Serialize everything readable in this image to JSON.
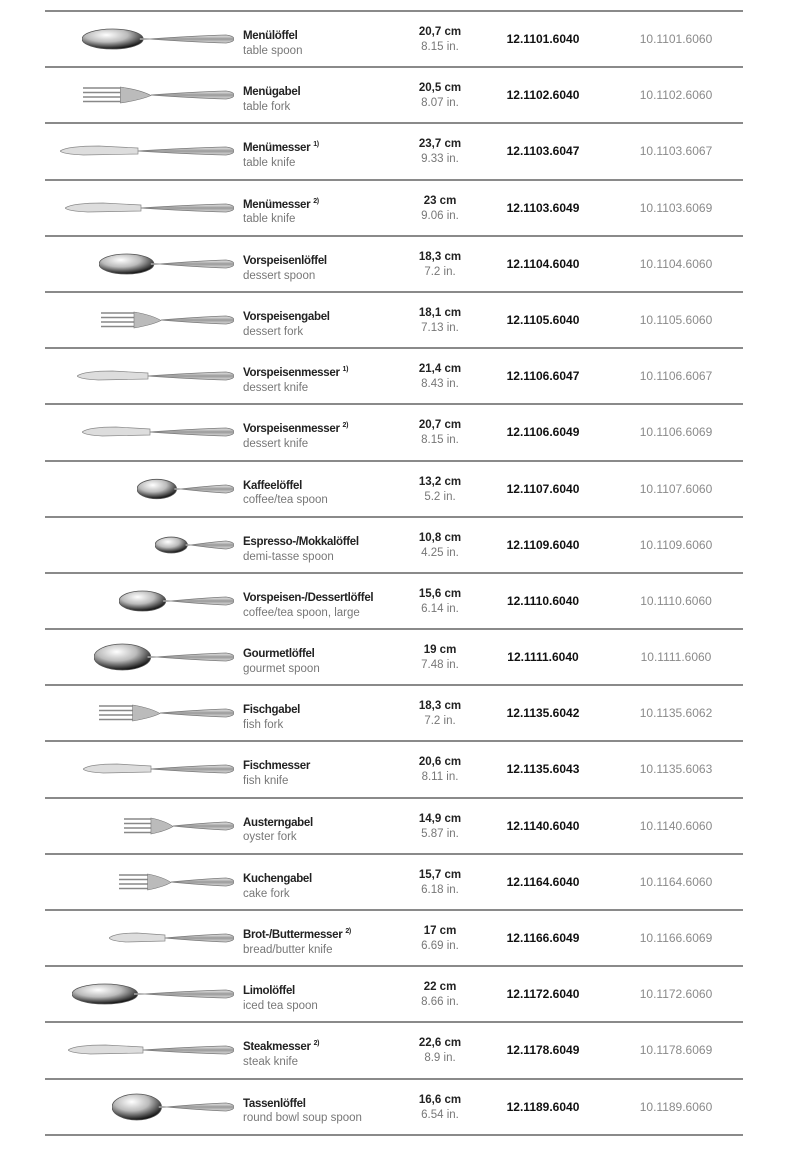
{
  "rows": [
    {
      "de": "Menülöffel",
      "note": "",
      "en": "table spoon",
      "cm": "20,7 cm",
      "in": "8.15 in.",
      "code1": "12.1101.6040",
      "code2": "10.1101.6060",
      "icon": "spoon",
      "len": 20.7
    },
    {
      "de": "Menügabel",
      "note": "",
      "en": "table fork",
      "cm": "20,5 cm",
      "in": "8.07 in.",
      "code1": "12.1102.6040",
      "code2": "10.1102.6060",
      "icon": "fork",
      "len": 20.5
    },
    {
      "de": "Menümesser",
      "note": "1)",
      "en": "table knife",
      "cm": "23,7 cm",
      "in": "9.33 in.",
      "code1": "12.1103.6047",
      "code2": "10.1103.6067",
      "icon": "knife",
      "len": 23.7
    },
    {
      "de": "Menümesser",
      "note": "2)",
      "en": "table knife",
      "cm": "23 cm",
      "in": "9.06 in.",
      "code1": "12.1103.6049",
      "code2": "10.1103.6069",
      "icon": "knife",
      "len": 23
    },
    {
      "de": "Vorspeisenlöffel",
      "note": "",
      "en": "dessert spoon",
      "cm": "18,3 cm",
      "in": "7.2 in.",
      "code1": "12.1104.6040",
      "code2": "10.1104.6060",
      "icon": "spoon",
      "len": 18.3
    },
    {
      "de": "Vorspeisengabel",
      "note": "",
      "en": "dessert fork",
      "cm": "18,1 cm",
      "in": "7.13 in.",
      "code1": "12.1105.6040",
      "code2": "10.1105.6060",
      "icon": "fork",
      "len": 18.1
    },
    {
      "de": "Vorspeisenmesser",
      "note": "1)",
      "en": "dessert knife",
      "cm": "21,4 cm",
      "in": "8.43 in.",
      "code1": "12.1106.6047",
      "code2": "10.1106.6067",
      "icon": "knife",
      "len": 21.4
    },
    {
      "de": "Vorspeisenmesser",
      "note": "2)",
      "en": "dessert knife",
      "cm": "20,7 cm",
      "in": "8.15 in.",
      "code1": "12.1106.6049",
      "code2": "10.1106.6069",
      "icon": "knife",
      "len": 20.7
    },
    {
      "de": "Kaffeelöffel",
      "note": "",
      "en": "coffee/tea spoon",
      "cm": "13,2 cm",
      "in": "5.2 in.",
      "code1": "12.1107.6040",
      "code2": "10.1107.6060",
      "icon": "spoon",
      "len": 13.2
    },
    {
      "de": "Espresso-/Mokkalöffel",
      "note": "",
      "en": "demi-tasse spoon",
      "cm": "10,8 cm",
      "in": "4.25 in.",
      "code1": "12.1109.6040",
      "code2": "10.1109.6060",
      "icon": "spoon",
      "len": 10.8
    },
    {
      "de": "Vorspeisen-/Dessertlöffel",
      "note": "",
      "en": "coffee/tea spoon, large",
      "cm": "15,6 cm",
      "in": "6.14 in.",
      "code1": "12.1110.6040",
      "code2": "10.1110.6060",
      "icon": "spoon",
      "len": 15.6
    },
    {
      "de": "Gourmetlöffel",
      "note": "",
      "en": "gourmet spoon",
      "cm": "19 cm",
      "in": "7.48 in.",
      "code1": "12.1111.6040",
      "code2": "10.1111.6060",
      "icon": "gourmet-spoon",
      "len": 19
    },
    {
      "de": "Fischgabel",
      "note": "",
      "en": "fish fork",
      "cm": "18,3 cm",
      "in": "7.2 in.",
      "code1": "12.1135.6042",
      "code2": "10.1135.6062",
      "icon": "fork",
      "len": 18.3
    },
    {
      "de": "Fischmesser",
      "note": "",
      "en": "fish knife",
      "cm": "20,6 cm",
      "in": "8.11 in.",
      "code1": "12.1135.6043",
      "code2": "10.1135.6063",
      "icon": "knife",
      "len": 20.6
    },
    {
      "de": "Austerngabel",
      "note": "",
      "en": "oyster fork",
      "cm": "14,9 cm",
      "in": "5.87 in.",
      "code1": "12.1140.6040",
      "code2": "10.1140.6060",
      "icon": "fork",
      "len": 14.9
    },
    {
      "de": "Kuchengabel",
      "note": "",
      "en": "cake fork",
      "cm": "15,7 cm",
      "in": "6.18 in.",
      "code1": "12.1164.6040",
      "code2": "10.1164.6060",
      "icon": "fork",
      "len": 15.7
    },
    {
      "de": "Brot-/Buttermesser",
      "note": "2)",
      "en": "bread/butter knife",
      "cm": "17 cm",
      "in": "6.69 in.",
      "code1": "12.1166.6049",
      "code2": "10.1166.6069",
      "icon": "knife",
      "len": 17
    },
    {
      "de": "Limolöffel",
      "note": "",
      "en": "iced tea spoon",
      "cm": "22 cm",
      "in": "8.66 in.",
      "code1": "12.1172.6040",
      "code2": "10.1172.6060",
      "icon": "spoon",
      "len": 22
    },
    {
      "de": "Steakmesser",
      "note": "2)",
      "en": "steak knife",
      "cm": "22,6 cm",
      "in": "8.9 in.",
      "code1": "12.1178.6049",
      "code2": "10.1178.6069",
      "icon": "knife",
      "len": 22.6
    },
    {
      "de": "Tassenlöffel",
      "note": "",
      "en": "round bowl soup spoon",
      "cm": "16,6 cm",
      "in": "6.54 in.",
      "code1": "12.1189.6040",
      "code2": "10.1189.6060",
      "icon": "gourmet-spoon",
      "len": 16.6
    }
  ]
}
